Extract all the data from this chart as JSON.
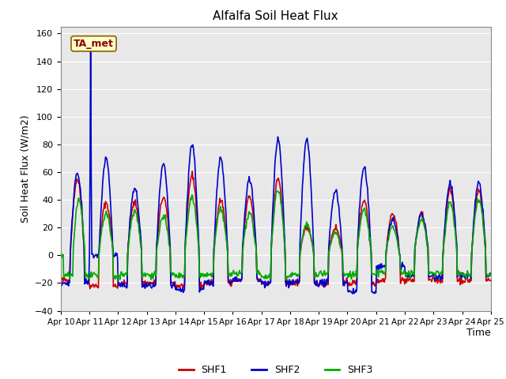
{
  "title": "Alfalfa Soil Heat Flux",
  "xlabel": "Time",
  "ylabel": "Soil Heat Flux (W/m2)",
  "ylim": [
    -40,
    165
  ],
  "yticks": [
    -40,
    -20,
    0,
    20,
    40,
    60,
    80,
    100,
    120,
    140,
    160
  ],
  "date_labels": [
    "Apr 10",
    "Apr 11",
    "Apr 12",
    "Apr 13",
    "Apr 14",
    "Apr 15",
    "Apr 16",
    "Apr 17",
    "Apr 18",
    "Apr 19",
    "Apr 20",
    "Apr 21",
    "Apr 22",
    "Apr 23",
    "Apr 24",
    "Apr 25"
  ],
  "line_colors": {
    "SHF1": "#cc0000",
    "SHF2": "#0000cc",
    "SHF3": "#00aa00"
  },
  "line_widths": {
    "SHF1": 1.2,
    "SHF2": 1.2,
    "SHF3": 1.2
  },
  "annotation_text": "TA_met",
  "bg_color": "#ffffff",
  "plot_bg_color": "#e8e8e8",
  "grid_color": "#ffffff",
  "legend_labels": [
    "SHF1",
    "SHF2",
    "SHF3"
  ],
  "n_days": 15,
  "n_per_day": 48
}
